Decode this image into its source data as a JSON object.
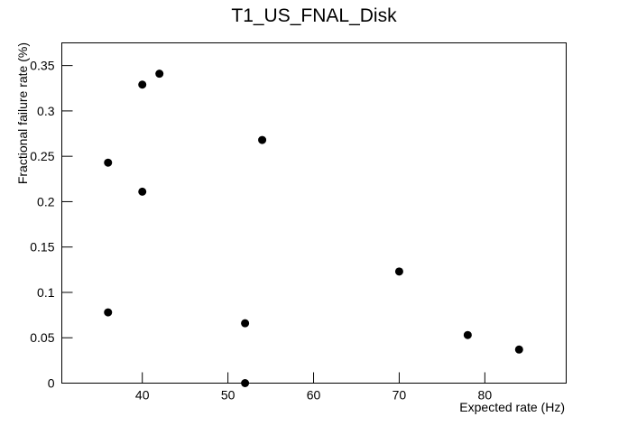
{
  "chart_data": {
    "type": "scatter",
    "title": "T1_US_FNAL_Disk",
    "x_label": "Expected rate (Hz)",
    "y_label": "Fractional failure rate (%)",
    "x": [
      36,
      40,
      42,
      40,
      36,
      54,
      52,
      52,
      70,
      78,
      84
    ],
    "values": [
      0.243,
      0.329,
      0.341,
      0.211,
      0.078,
      0.268,
      0.066,
      0,
      0.123,
      0.053,
      0.037
    ],
    "color": "#000000",
    "xlim": [
      30.6,
      89.5
    ],
    "xticks": [
      40,
      50,
      60,
      70,
      80
    ],
    "ylim": [
      0,
      0.375
    ],
    "yticks": [
      0,
      0.05,
      0.1,
      0.15,
      0.2,
      0.25,
      0.3,
      0.35
    ]
  }
}
